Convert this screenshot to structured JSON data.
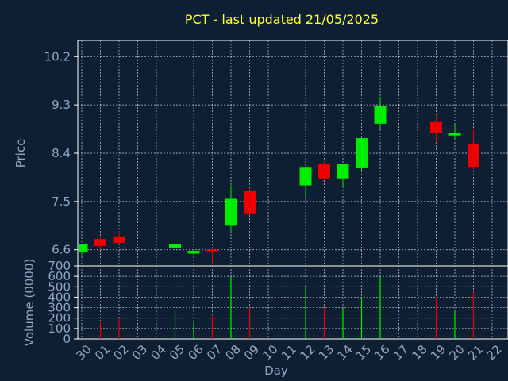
{
  "chart_data": [
    {
      "type": "candlestick",
      "title": "PCT - last updated 21/05/2025",
      "ylabel": "Price",
      "xlabel": "",
      "ylim": [
        6.3,
        10.5
      ],
      "yticks": [
        6.6,
        7.5,
        8.4,
        9.3,
        10.2
      ],
      "grid": true,
      "categories": [
        "30",
        "01",
        "02",
        "03",
        "04",
        "05",
        "06",
        "07",
        "08",
        "09",
        "10",
        "11",
        "12",
        "13",
        "14",
        "15",
        "16",
        "17",
        "18",
        "19",
        "20",
        "21",
        "22"
      ],
      "candles": [
        {
          "x": "30",
          "open": 6.55,
          "high": 6.7,
          "low": 6.5,
          "close": 6.7
        },
        {
          "x": "01",
          "open": 6.8,
          "high": 6.85,
          "low": 6.6,
          "close": 6.67
        },
        {
          "x": "02",
          "open": 6.85,
          "high": 6.95,
          "low": 6.7,
          "close": 6.73
        },
        {
          "x": "05",
          "open": 6.63,
          "high": 6.75,
          "low": 6.4,
          "close": 6.7
        },
        {
          "x": "06",
          "open": 6.53,
          "high": 6.6,
          "low": 6.5,
          "close": 6.58
        },
        {
          "x": "07",
          "open": 6.6,
          "high": 6.65,
          "low": 6.35,
          "close": 6.58
        },
        {
          "x": "08",
          "open": 7.05,
          "high": 7.8,
          "low": 6.95,
          "close": 7.55
        },
        {
          "x": "09",
          "open": 7.7,
          "high": 7.75,
          "low": 7.25,
          "close": 7.28
        },
        {
          "x": "12",
          "open": 7.8,
          "high": 8.15,
          "low": 7.6,
          "close": 8.13
        },
        {
          "x": "13",
          "open": 8.2,
          "high": 8.25,
          "low": 7.9,
          "close": 7.93
        },
        {
          "x": "14",
          "open": 7.93,
          "high": 8.2,
          "low": 7.75,
          "close": 8.2
        },
        {
          "x": "15",
          "open": 8.12,
          "high": 8.7,
          "low": 8.05,
          "close": 8.68
        },
        {
          "x": "16",
          "open": 8.95,
          "high": 9.45,
          "low": 8.85,
          "close": 9.28
        },
        {
          "x": "19",
          "open": 8.98,
          "high": 9.1,
          "low": 8.6,
          "close": 8.77
        },
        {
          "x": "20",
          "open": 8.73,
          "high": 8.95,
          "low": 8.65,
          "close": 8.78
        },
        {
          "x": "21",
          "open": 8.58,
          "high": 8.85,
          "low": 8.1,
          "close": 8.13
        }
      ],
      "colors": {
        "up": "#00ee00",
        "down": "#ee0000",
        "grid": "#cccccc",
        "text": "#8fa7c0",
        "title": "#ffff33",
        "background": "#0f1f33"
      }
    },
    {
      "type": "bar",
      "ylabel": "Volume (0000)",
      "xlabel": "Day",
      "ylim": [
        0,
        700
      ],
      "yticks": [
        0,
        100,
        200,
        300,
        400,
        500,
        600,
        700
      ],
      "grid": true,
      "categories": [
        "30",
        "01",
        "02",
        "03",
        "04",
        "05",
        "06",
        "07",
        "08",
        "09",
        "10",
        "11",
        "12",
        "13",
        "14",
        "15",
        "16",
        "17",
        "18",
        "19",
        "20",
        "21",
        "22"
      ],
      "values": [
        {
          "x": "01",
          "value": 160,
          "dir": "down"
        },
        {
          "x": "02",
          "value": 200,
          "dir": "down"
        },
        {
          "x": "05",
          "value": 280,
          "dir": "up"
        },
        {
          "x": "06",
          "value": 160,
          "dir": "up"
        },
        {
          "x": "07",
          "value": 220,
          "dir": "down"
        },
        {
          "x": "08",
          "value": 600,
          "dir": "up"
        },
        {
          "x": "09",
          "value": 300,
          "dir": "down"
        },
        {
          "x": "12",
          "value": 500,
          "dir": "up"
        },
        {
          "x": "13",
          "value": 300,
          "dir": "down"
        },
        {
          "x": "14",
          "value": 300,
          "dir": "up"
        },
        {
          "x": "15",
          "value": 400,
          "dir": "up"
        },
        {
          "x": "16",
          "value": 600,
          "dir": "up"
        },
        {
          "x": "19",
          "value": 400,
          "dir": "down"
        },
        {
          "x": "20",
          "value": 260,
          "dir": "up"
        },
        {
          "x": "21",
          "value": 450,
          "dir": "down"
        }
      ]
    }
  ]
}
